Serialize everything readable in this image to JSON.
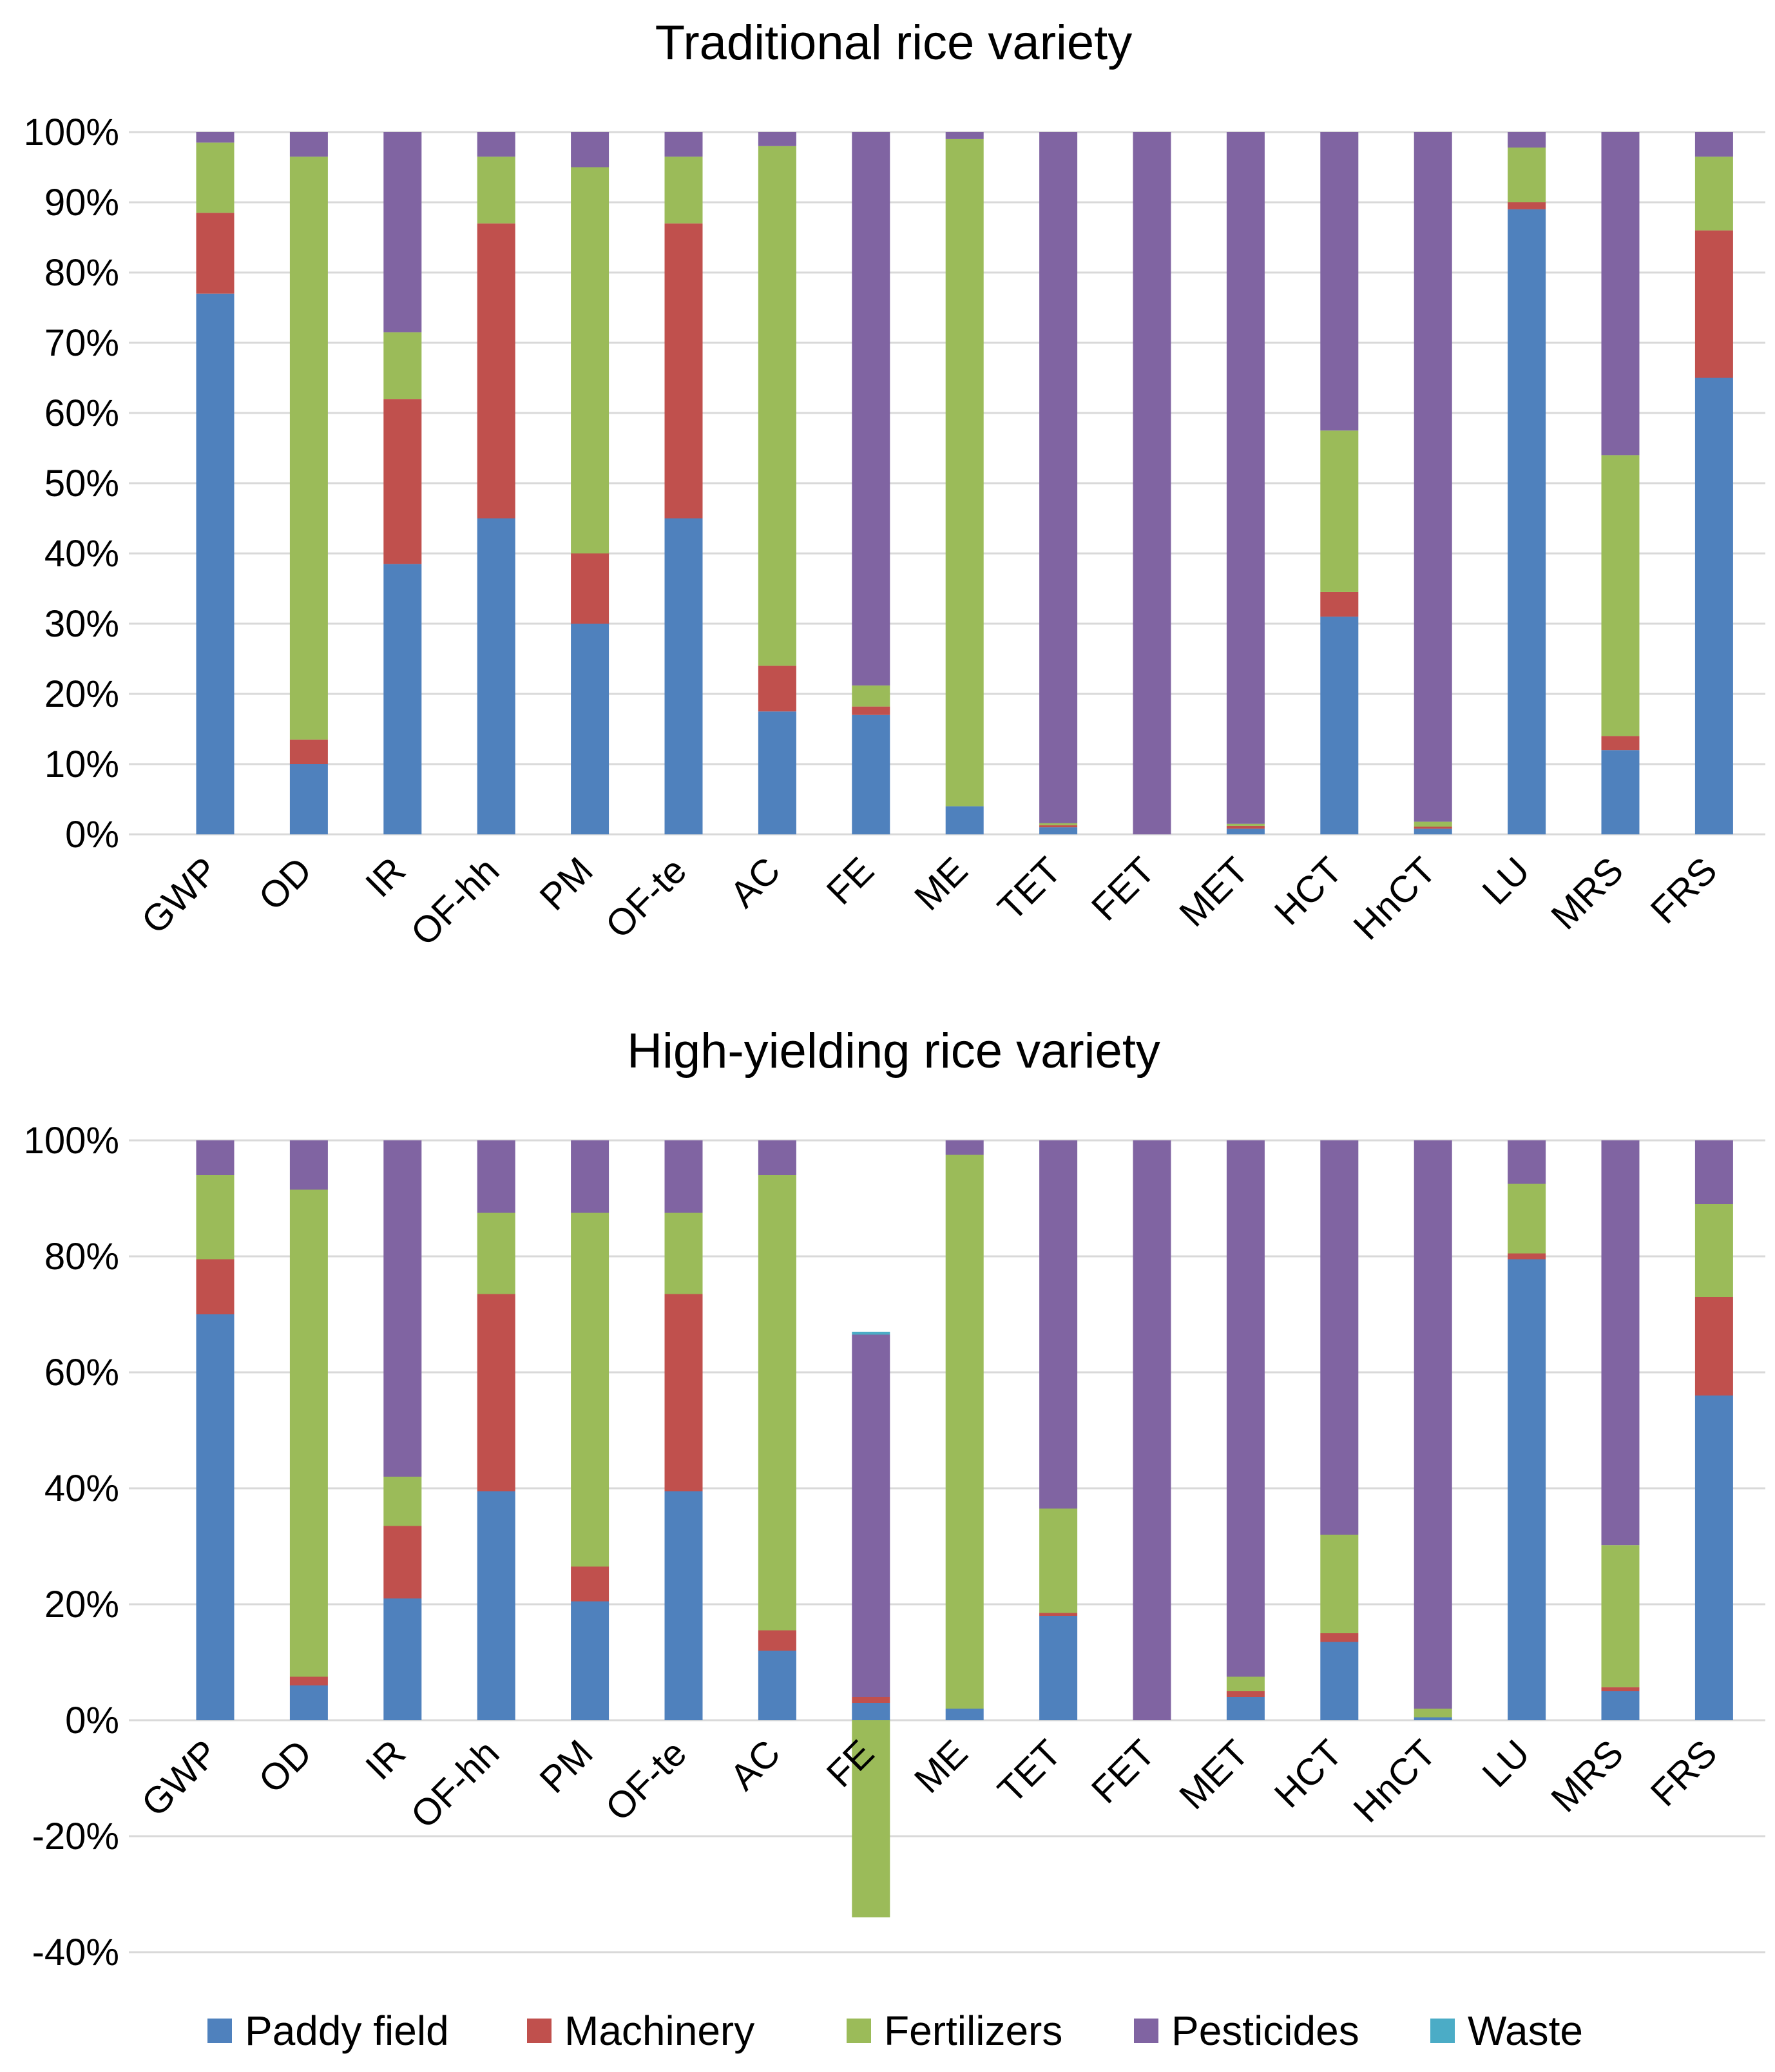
{
  "colors": {
    "Paddy field": "#4f81bd",
    "Machinery": "#c0504d",
    "Fertilizers": "#9bbb59",
    "Pesticides": "#8064a2",
    "Waste": "#4bacc6"
  },
  "legend": [
    "Paddy field",
    "Machinery",
    "Fertilizers",
    "Pesticides",
    "Waste"
  ],
  "chart_data": [
    {
      "type": "bar",
      "stacked": true,
      "title": "Traditional rice variety",
      "categories": [
        "GWP",
        "OD",
        "IR",
        "OF-hh",
        "PM",
        "OF-te",
        "AC",
        "FE",
        "ME",
        "TET",
        "FET",
        "MET",
        "HCT",
        "HnCT",
        "LU",
        "MRS",
        "FRS"
      ],
      "yticks": [
        "0%",
        "10%",
        "20%",
        "30%",
        "40%",
        "50%",
        "60%",
        "70%",
        "80%",
        "90%",
        "100%"
      ],
      "ylim": [
        0,
        100
      ],
      "grid": true,
      "series": [
        {
          "name": "Paddy field",
          "values": [
            77,
            10,
            38.5,
            45,
            30,
            45,
            17.5,
            17,
            4,
            1,
            0,
            0.8,
            31,
            0.8,
            89,
            12,
            65
          ]
        },
        {
          "name": "Machinery",
          "values": [
            11.5,
            3.5,
            23.5,
            42,
            10,
            42,
            6.5,
            1.2,
            0,
            0.3,
            0,
            0.4,
            3.5,
            0.3,
            1,
            2,
            21
          ]
        },
        {
          "name": "Fertilizers",
          "values": [
            10,
            83,
            9.5,
            9.5,
            55,
            9.5,
            74,
            3,
            95,
            0.3,
            0,
            0.3,
            23,
            0.7,
            7.8,
            40,
            10.5
          ]
        },
        {
          "name": "Pesticides",
          "values": [
            1.5,
            3.5,
            28.5,
            3.5,
            5,
            3.5,
            2,
            78.8,
            1,
            98.4,
            100,
            98.5,
            42.5,
            98.2,
            2.2,
            46,
            3.5
          ]
        },
        {
          "name": "Waste",
          "values": [
            0,
            0,
            0,
            0,
            0,
            0,
            0,
            0,
            0,
            0,
            0,
            0,
            0,
            0,
            0,
            0,
            0
          ]
        }
      ]
    },
    {
      "type": "bar",
      "stacked": true,
      "title": "High-yielding rice variety",
      "categories": [
        "GWP",
        "OD",
        "IR",
        "OF-hh",
        "PM",
        "OF-te",
        "AC",
        "FE",
        "ME",
        "TET",
        "FET",
        "MET",
        "HCT",
        "HnCT",
        "LU",
        "MRS",
        "FRS"
      ],
      "yticks": [
        "-40%",
        "-20%",
        "0%",
        "20%",
        "40%",
        "60%",
        "80%",
        "100%"
      ],
      "ylim": [
        -40,
        100
      ],
      "grid": true,
      "series": [
        {
          "name": "Paddy field",
          "values": [
            70,
            6,
            21,
            39.5,
            20.5,
            39.5,
            12,
            3,
            2,
            18,
            0,
            4,
            13.5,
            0.5,
            79.5,
            5,
            56
          ]
        },
        {
          "name": "Machinery",
          "values": [
            9.5,
            1.5,
            12.5,
            34,
            6,
            34,
            3.5,
            1,
            0,
            0.5,
            0,
            1,
            1.5,
            0,
            1,
            0.7,
            17
          ]
        },
        {
          "name": "Fertilizers",
          "values": [
            14.5,
            84,
            8.5,
            14,
            61,
            14,
            78.5,
            -34,
            95.5,
            18,
            0,
            2.5,
            17,
            1.5,
            12,
            24.5,
            16
          ]
        },
        {
          "name": "Pesticides",
          "values": [
            6,
            8.5,
            58,
            12.5,
            12.5,
            12.5,
            6,
            62.5,
            2.5,
            63.5,
            100,
            92.5,
            68,
            98,
            7.5,
            69.8,
            11
          ]
        },
        {
          "name": "Waste",
          "values": [
            0,
            0,
            0,
            0,
            0,
            0,
            0,
            0.5,
            0,
            0,
            0,
            0,
            0,
            0,
            0,
            0,
            0
          ]
        }
      ]
    }
  ]
}
